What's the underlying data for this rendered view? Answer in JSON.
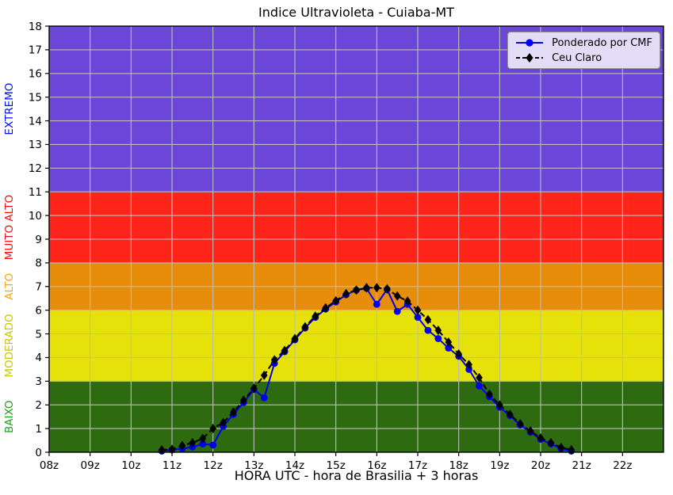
{
  "title": "Indice Ultravioleta - Cuiaba-MT",
  "chart_data": {
    "type": "line",
    "title": "Indice Ultravioleta - Cuiaba-MT",
    "xlabel": "HORA UTC - hora de Brasilia + 3 horas",
    "ylabel": "",
    "xlim": [
      8,
      23
    ],
    "ylim": [
      0,
      18
    ],
    "grid": true,
    "grid_color": "#bdbdbd",
    "frame_color": "#000000",
    "x_ticks": [
      {
        "value": 8,
        "label": "08z"
      },
      {
        "value": 9,
        "label": "09z"
      },
      {
        "value": 10,
        "label": "10z"
      },
      {
        "value": 11,
        "label": "11z"
      },
      {
        "value": 12,
        "label": "12z"
      },
      {
        "value": 13,
        "label": "13z"
      },
      {
        "value": 14,
        "label": "14z"
      },
      {
        "value": 15,
        "label": "15z"
      },
      {
        "value": 16,
        "label": "16z"
      },
      {
        "value": 17,
        "label": "17z"
      },
      {
        "value": 18,
        "label": "18z"
      },
      {
        "value": 19,
        "label": "19z"
      },
      {
        "value": 20,
        "label": "20z"
      },
      {
        "value": 21,
        "label": "21z"
      },
      {
        "value": 22,
        "label": "22z"
      }
    ],
    "y_ticks": [
      0,
      1,
      2,
      3,
      4,
      5,
      6,
      7,
      8,
      9,
      10,
      11,
      12,
      13,
      14,
      15,
      16,
      17,
      18
    ],
    "bands": [
      {
        "name": "BAIXO",
        "from": 0,
        "to": 3,
        "fill": "#2e6b10",
        "label_color": "#1f9e1f"
      },
      {
        "name": "MODERADO",
        "from": 3,
        "to": 6,
        "fill": "#e6e109",
        "label_color": "#c9c900"
      },
      {
        "name": "ALTO",
        "from": 6,
        "to": 8,
        "fill": "#e88d0a",
        "label_color": "#ffa500"
      },
      {
        "name": "MUITO ALTO",
        "from": 8,
        "to": 11,
        "fill": "#ff2419",
        "label_color": "#ee1010"
      },
      {
        "name": "EXTREMO",
        "from": 11,
        "to": 18,
        "fill": "#6b46d9",
        "label_color": "#0010ee"
      }
    ],
    "x": [
      10.75,
      11.0,
      11.25,
      11.5,
      11.75,
      12.0,
      12.25,
      12.5,
      12.75,
      13.0,
      13.25,
      13.5,
      13.75,
      14.0,
      14.25,
      14.5,
      14.75,
      15.0,
      15.25,
      15.5,
      15.75,
      16.0,
      16.25,
      16.5,
      16.75,
      17.0,
      17.25,
      17.5,
      17.75,
      18.0,
      18.25,
      18.5,
      18.75,
      19.0,
      19.25,
      19.5,
      19.75,
      20.0,
      20.25,
      20.5,
      20.75
    ],
    "series": [
      {
        "name": "Ponderado por CMF",
        "color": "#0000ee",
        "line_style": "solid",
        "marker": "circle",
        "values": [
          0.05,
          0.1,
          0.15,
          0.22,
          0.35,
          0.3,
          1.1,
          1.6,
          2.1,
          2.65,
          2.3,
          3.75,
          4.25,
          4.75,
          5.25,
          5.7,
          6.05,
          6.35,
          6.65,
          6.85,
          6.92,
          6.25,
          6.88,
          5.95,
          6.25,
          5.7,
          5.15,
          4.8,
          4.4,
          4.05,
          3.5,
          2.8,
          2.35,
          1.9,
          1.55,
          1.15,
          0.85,
          0.55,
          0.35,
          0.15,
          0.05
        ]
      },
      {
        "name": "Ceu Claro",
        "color": "#000000",
        "line_style": "dashed",
        "marker": "diamond",
        "values": [
          0.1,
          0.12,
          0.28,
          0.4,
          0.58,
          1.0,
          1.25,
          1.7,
          2.2,
          2.7,
          3.25,
          3.9,
          4.3,
          4.8,
          5.3,
          5.75,
          6.1,
          6.4,
          6.7,
          6.85,
          6.95,
          6.95,
          6.9,
          6.6,
          6.38,
          6.0,
          5.6,
          5.15,
          4.65,
          4.15,
          3.7,
          3.15,
          2.45,
          2.0,
          1.6,
          1.2,
          0.9,
          0.6,
          0.4,
          0.2,
          0.1
        ]
      }
    ],
    "legend_position": "upper right"
  }
}
